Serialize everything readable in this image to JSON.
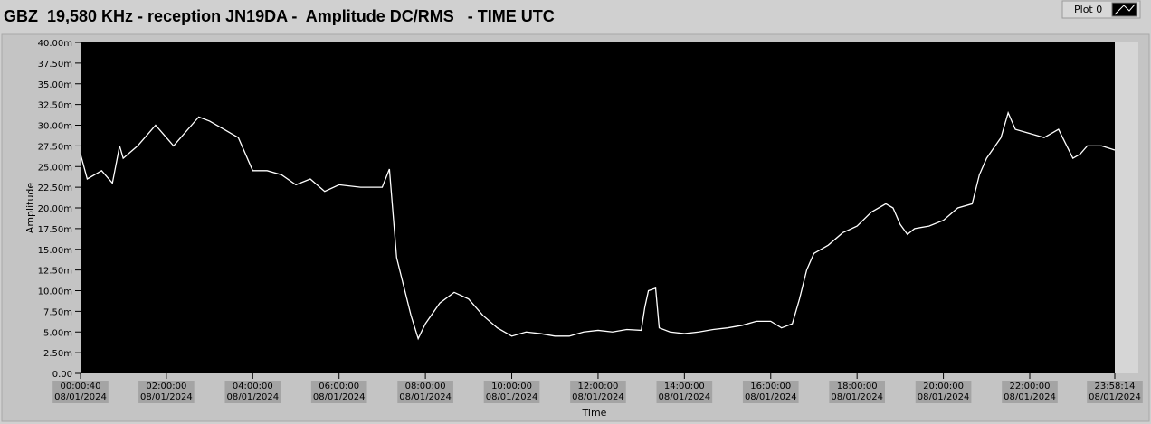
{
  "chart_data": {
    "type": "line",
    "title": "GBZ  19,580 KHz - reception JN19DA -  Amplitude DC/RMS   - TIME UTC",
    "x_label": "Time",
    "y_label": "Amplitude",
    "legend_position": "top-right",
    "xlim": [
      40,
      86294
    ],
    "ylim": [
      0,
      0.04
    ],
    "xticks": [
      {
        "value": 40,
        "label": "00:00:40\n08/01/2024"
      },
      {
        "value": 7200,
        "label": "02:00:00\n08/01/2024"
      },
      {
        "value": 14400,
        "label": "04:00:00\n08/01/2024"
      },
      {
        "value": 21600,
        "label": "06:00:00\n08/01/2024"
      },
      {
        "value": 28800,
        "label": "08:00:00\n08/01/2024"
      },
      {
        "value": 36000,
        "label": "10:00:00\n08/01/2024"
      },
      {
        "value": 43200,
        "label": "12:00:00\n08/01/2024"
      },
      {
        "value": 50400,
        "label": "14:00:00\n08/01/2024"
      },
      {
        "value": 57600,
        "label": "16:00:00\n08/01/2024"
      },
      {
        "value": 64800,
        "label": "18:00:00\n08/01/2024"
      },
      {
        "value": 72000,
        "label": "20:00:00\n08/01/2024"
      },
      {
        "value": 79200,
        "label": "22:00:00\n08/01/2024"
      },
      {
        "value": 86294,
        "label": "23:58:14\n08/01/2024"
      }
    ],
    "yticks": [
      {
        "value": 0,
        "label": "0.00"
      },
      {
        "value": 0.0025,
        "label": "2.50m"
      },
      {
        "value": 0.005,
        "label": "5.00m"
      },
      {
        "value": 0.0075,
        "label": "7.50m"
      },
      {
        "value": 0.01,
        "label": "10.00m"
      },
      {
        "value": 0.0125,
        "label": "12.50m"
      },
      {
        "value": 0.015,
        "label": "15.00m"
      },
      {
        "value": 0.0175,
        "label": "17.50m"
      },
      {
        "value": 0.02,
        "label": "20.00m"
      },
      {
        "value": 0.0225,
        "label": "22.50m"
      },
      {
        "value": 0.025,
        "label": "25.00m"
      },
      {
        "value": 0.0275,
        "label": "27.50m"
      },
      {
        "value": 0.03,
        "label": "30.00m"
      },
      {
        "value": 0.0325,
        "label": "32.50m"
      },
      {
        "value": 0.035,
        "label": "35.00m"
      },
      {
        "value": 0.0375,
        "label": "37.50m"
      },
      {
        "value": 0.04,
        "label": "40.00m"
      }
    ],
    "x": [
      40,
      600,
      1800,
      2700,
      3300,
      3600,
      4800,
      5700,
      6300,
      7200,
      7800,
      8400,
      9300,
      9900,
      10800,
      12000,
      13200,
      14400,
      15600,
      16800,
      18000,
      19200,
      20400,
      21600,
      23400,
      25200,
      25800,
      26400,
      27000,
      27600,
      28200,
      28800,
      30000,
      31200,
      32400,
      33600,
      34800,
      36000,
      37200,
      38400,
      39600,
      40800,
      42000,
      43200,
      44400,
      45600,
      46800,
      47100,
      47400,
      48000,
      48300,
      49200,
      50400,
      51600,
      52800,
      54000,
      55200,
      56400,
      57600,
      58500,
      59400,
      60000,
      60600,
      61200,
      62400,
      63600,
      64800,
      66000,
      67200,
      67800,
      68400,
      69000,
      69600,
      70800,
      72000,
      73200,
      74400,
      75000,
      75600,
      76800,
      77400,
      78000,
      79200,
      80400,
      81600,
      82800,
      83400,
      84000,
      85200,
      86294
    ],
    "series": [
      {
        "name": "Plot 0",
        "color": "#ffffff",
        "values": [
          0.0265,
          0.0235,
          0.0245,
          0.023,
          0.0275,
          0.026,
          0.0275,
          0.029,
          0.03,
          0.0285,
          0.0275,
          0.0285,
          0.03,
          0.031,
          0.0305,
          0.0295,
          0.0285,
          0.0245,
          0.0245,
          0.024,
          0.0228,
          0.0235,
          0.022,
          0.0228,
          0.0225,
          0.0225,
          0.0247,
          0.014,
          0.0105,
          0.007,
          0.0042,
          0.006,
          0.0085,
          0.0098,
          0.009,
          0.007,
          0.0055,
          0.0045,
          0.005,
          0.0048,
          0.0045,
          0.0045,
          0.005,
          0.0052,
          0.005,
          0.0053,
          0.0052,
          0.008,
          0.01,
          0.0103,
          0.0055,
          0.005,
          0.0048,
          0.005,
          0.0053,
          0.0055,
          0.0058,
          0.0063,
          0.0063,
          0.0055,
          0.006,
          0.009,
          0.0125,
          0.0145,
          0.0155,
          0.017,
          0.0178,
          0.0195,
          0.0205,
          0.02,
          0.018,
          0.0168,
          0.0175,
          0.0178,
          0.0185,
          0.02,
          0.0205,
          0.024,
          0.026,
          0.0285,
          0.0315,
          0.0295,
          0.029,
          0.0285,
          0.0295,
          0.026,
          0.0265,
          0.0275,
          0.0275,
          0.027
        ]
      }
    ]
  }
}
